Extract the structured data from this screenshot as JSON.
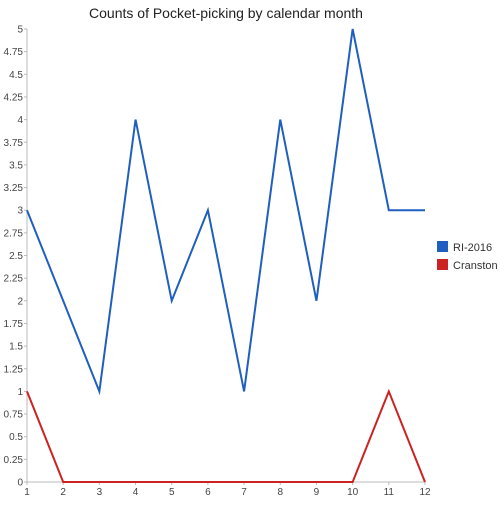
{
  "chart_data": {
    "type": "line",
    "title": "Counts of Pocket-picking by calendar month",
    "xlabel": "",
    "ylabel": "",
    "x": [
      1,
      2,
      3,
      4,
      5,
      6,
      7,
      8,
      9,
      10,
      11,
      12
    ],
    "x_tick_labels": [
      "1",
      "2",
      "3",
      "4",
      "5",
      "6",
      "7",
      "8",
      "9",
      "10",
      "11",
      "12"
    ],
    "xlim": [
      1,
      12
    ],
    "ylim": [
      0,
      5
    ],
    "y_ticks": [
      0,
      0.25,
      0.5,
      0.75,
      1,
      1.25,
      1.5,
      1.75,
      2,
      2.25,
      2.5,
      2.75,
      3,
      3.25,
      3.5,
      3.75,
      4,
      4.25,
      4.5,
      4.75,
      5
    ],
    "y_tick_labels": [
      "0",
      "0.25",
      "0.5",
      "0.75",
      "1",
      "1.25",
      "1.5",
      "1.75",
      "2",
      "2.25",
      "2.5",
      "2.75",
      "3",
      "3.25",
      "3.5",
      "3.75",
      "4",
      "4.25",
      "4.5",
      "4.75",
      "5"
    ],
    "grid": false,
    "legend_position": "right",
    "series": [
      {
        "name": "RI-2016",
        "color": "#1f5fbf",
        "values": [
          3,
          2,
          1,
          4,
          2,
          3,
          1,
          4,
          2,
          5,
          3,
          3
        ]
      },
      {
        "name": "Cranston",
        "color": "#cc2222",
        "values": [
          1,
          0,
          0,
          0,
          0,
          0,
          0,
          0,
          0,
          0,
          1,
          0
        ]
      }
    ]
  }
}
